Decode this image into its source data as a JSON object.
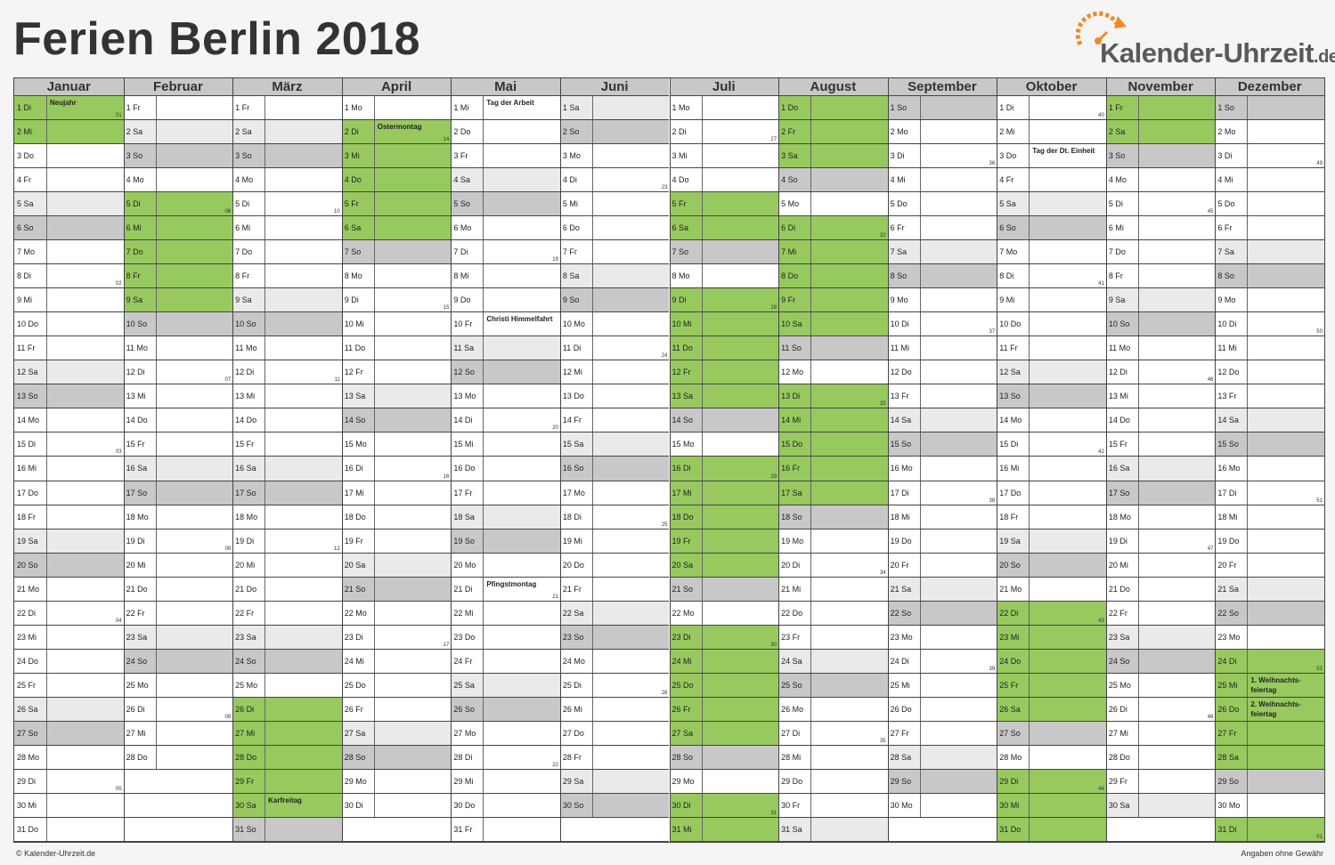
{
  "title": "Ferien Berlin 2018",
  "logo": {
    "text": "Kalender-Uhrzeit",
    "tld": ".de",
    "icon": "clock-arrow-icon"
  },
  "footer": {
    "left": "© Kalender-Uhrzeit.de",
    "right": "Angaben ohne Gewähr"
  },
  "colors": {
    "ferien": "#97c95f",
    "saturday": "#eaeaea",
    "sunday": "#c8c8c8"
  },
  "months": [
    {
      "name": "Januar",
      "days": 31,
      "start": 1,
      "ferien": [
        1,
        2
      ],
      "holidays": {
        "1": "Neujahr"
      },
      "weeks": {
        "1": "01",
        "8": "02",
        "15": "03",
        "22": "04",
        "29": "05"
      }
    },
    {
      "name": "Februar",
      "days": 28,
      "start": 4,
      "ferien": [
        5,
        6,
        7,
        8,
        9
      ],
      "holidays": {},
      "weeks": {
        "5": "06",
        "12": "07",
        "19": "08",
        "26": "09"
      }
    },
    {
      "name": "März",
      "days": 31,
      "start": 4,
      "ferien": [
        26,
        27,
        28,
        29,
        30
      ],
      "holidays": {
        "30": "Karfreitag"
      },
      "weeks": {
        "5": "10",
        "12": "11",
        "19": "12"
      }
    },
    {
      "name": "April",
      "days": 30,
      "start": 0,
      "ferien": [
        2,
        3,
        4,
        5,
        6
      ],
      "holidays": {
        "2": "Ostermontag"
      },
      "weeks": {
        "2": "14",
        "9": "15",
        "16": "16",
        "23": "17"
      }
    },
    {
      "name": "Mai",
      "days": 31,
      "start": 2,
      "ferien": [],
      "holidays": {
        "1": "Tag der Arbeit",
        "10": "Christi Himmelfahrt",
        "21": "Pfingstmontag"
      },
      "weeks": {
        "7": "19",
        "14": "20",
        "21": "21",
        "28": "22"
      }
    },
    {
      "name": "Juni",
      "days": 30,
      "start": 5,
      "ferien": [],
      "holidays": {},
      "weeks": {
        "4": "23",
        "11": "24",
        "18": "25",
        "25": "26"
      }
    },
    {
      "name": "Juli",
      "days": 31,
      "start": 0,
      "ferien": [
        5,
        6,
        9,
        10,
        11,
        12,
        13,
        16,
        17,
        18,
        19,
        20,
        23,
        24,
        25,
        26,
        27,
        30,
        31
      ],
      "holidays": {},
      "weeks": {
        "2": "27",
        "9": "28",
        "16": "29",
        "23": "30",
        "30": "31"
      }
    },
    {
      "name": "August",
      "days": 31,
      "start": 3,
      "ferien": [
        1,
        2,
        3,
        6,
        7,
        8,
        9,
        10,
        13,
        14,
        15,
        16,
        17
      ],
      "holidays": {},
      "weeks": {
        "6": "32",
        "13": "33",
        "20": "34",
        "27": "35"
      }
    },
    {
      "name": "September",
      "days": 30,
      "start": 6,
      "ferien": [],
      "holidays": {},
      "weeks": {
        "3": "36",
        "10": "37",
        "17": "38",
        "24": "39"
      }
    },
    {
      "name": "Oktober",
      "days": 31,
      "start": 1,
      "ferien": [
        22,
        23,
        24,
        25,
        26,
        29,
        30,
        31
      ],
      "holidays": {
        "3": "Tag der Dt. Einheit"
      },
      "weeks": {
        "1": "40",
        "8": "41",
        "15": "42",
        "22": "43",
        "29": "44"
      }
    },
    {
      "name": "November",
      "days": 30,
      "start": 4,
      "ferien": [
        1,
        2
      ],
      "holidays": {},
      "weeks": {
        "5": "45",
        "12": "46",
        "19": "47",
        "26": "48"
      }
    },
    {
      "name": "Dezember",
      "days": 31,
      "start": 6,
      "ferien": [
        24,
        25,
        26,
        27,
        28,
        31
      ],
      "holidays": {
        "25": "1. Weihnachts-feiertag",
        "26": "2. Weihnachts-feiertag"
      },
      "weeks": {
        "3": "49",
        "10": "50",
        "17": "51",
        "24": "52",
        "31": "01"
      }
    }
  ],
  "weekdays": [
    "Mo",
    "Di",
    "Mi",
    "Do",
    "Fr",
    "Sa",
    "So"
  ]
}
